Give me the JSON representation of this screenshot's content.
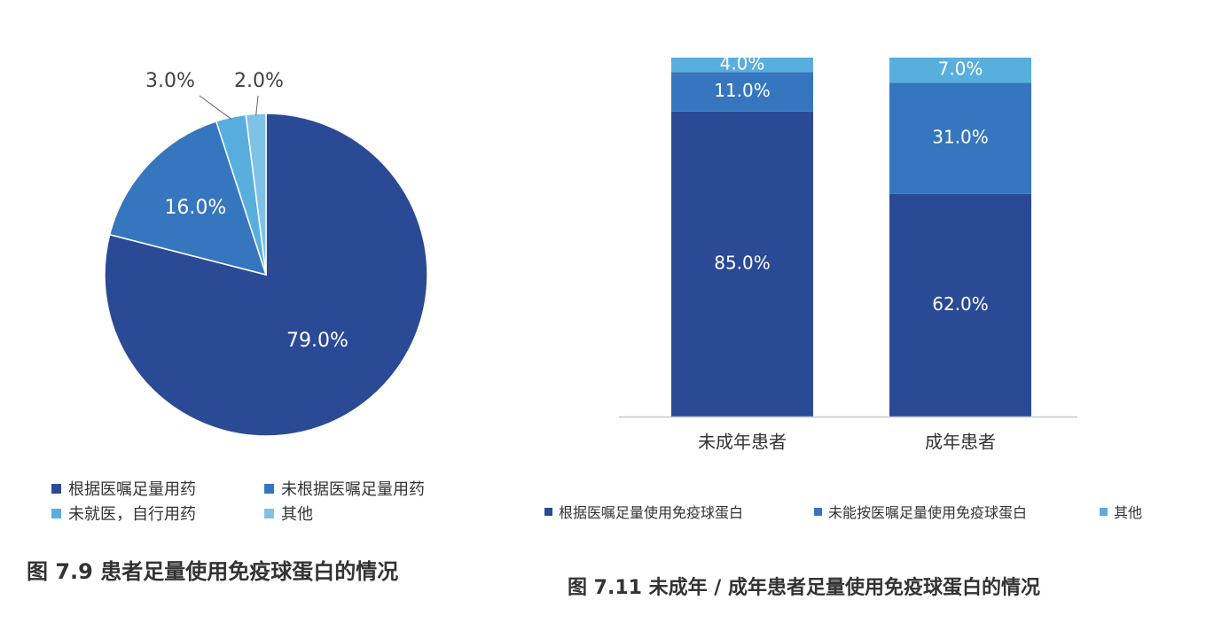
{
  "colors": {
    "dark": "#2b4a95",
    "mid": "#3676bf",
    "light": "#58aedd",
    "lighter": "#7fc2e6"
  },
  "chart_data": [
    {
      "type": "pie",
      "labels": [
        "根据医嘱足量用药",
        "未根据医嘱足量用药",
        "未就医，自行用药",
        "其他"
      ],
      "values": [
        79.0,
        16.0,
        3.0,
        2.0
      ],
      "data_labels": [
        "79.0%",
        "16.0%",
        "3.0%",
        "2.0%"
      ],
      "title": "图 7.9 患者足量使用免疫球蛋白的情况",
      "legend": {
        "placement": "bottom",
        "entries": [
          "根据医嘱足量用药",
          "未根据医嘱足量用药",
          "未就医，自行用药",
          "其他"
        ]
      }
    },
    {
      "type": "bar",
      "stacked": true,
      "categories": [
        "未成年患者",
        "成年患者"
      ],
      "series": [
        {
          "name": "根据医嘱足量使用免疫球蛋白",
          "values": [
            85.0,
            62.0
          ],
          "labels": [
            "85.0%",
            "62.0%"
          ]
        },
        {
          "name": "未能按医嘱足量使用免疫球蛋白",
          "values": [
            11.0,
            31.0
          ],
          "labels": [
            "11.0%",
            "31.0%"
          ]
        },
        {
          "name": "其他",
          "values": [
            4.0,
            7.0
          ],
          "labels": [
            "4.0%",
            "7.0%"
          ]
        }
      ],
      "ylim": [
        0,
        100
      ],
      "title": "图 7.11 未成年 / 成年患者足量使用免疫球蛋白的情况",
      "legend": {
        "placement": "bottom"
      }
    }
  ]
}
